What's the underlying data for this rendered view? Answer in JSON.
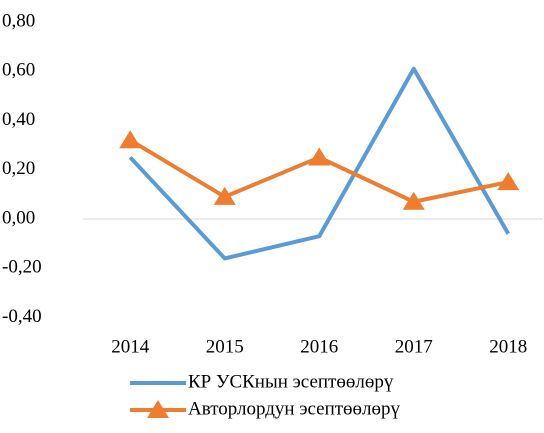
{
  "chart_data": {
    "type": "line",
    "categories": [
      "2014",
      "2015",
      "2016",
      "2017",
      "2018"
    ],
    "series": [
      {
        "name": "КР УСКнын эсептөөлөрү",
        "color": "#5b9bd5",
        "values": [
          0.25,
          -0.16,
          -0.07,
          0.61,
          -0.06
        ]
      },
      {
        "name": "Авторлордун эсептөөлөрү",
        "color": "#ed7d31",
        "marker": "triangle",
        "values": [
          0.32,
          0.09,
          0.25,
          0.07,
          0.15
        ]
      }
    ],
    "ylim": [
      -0.4,
      0.8
    ],
    "yticks": [
      {
        "value": -0.4,
        "label": "-0,40"
      },
      {
        "value": -0.2,
        "label": "-0,20"
      },
      {
        "value": 0,
        "label": "0,00"
      },
      {
        "value": 0.2,
        "label": "0,20"
      },
      {
        "value": 0.4,
        "label": "0,40"
      },
      {
        "value": 0.6,
        "label": "0,60"
      },
      {
        "value": 0.8,
        "label": "0,80"
      }
    ],
    "grid": false,
    "legend": "bottom"
  }
}
